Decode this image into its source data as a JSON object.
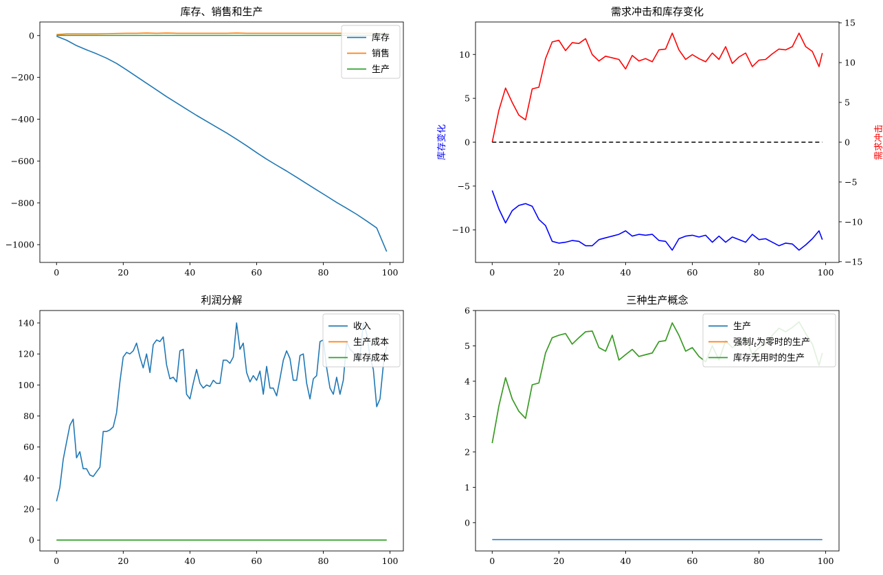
{
  "figure": {
    "background": "#ffffff"
  },
  "chart_data": [
    {
      "id": "p1",
      "type": "line",
      "title": "库存、销售和生产",
      "xlim": [
        -5,
        104
      ],
      "ylim": [
        -1085,
        65
      ],
      "xticks": [
        0,
        20,
        40,
        60,
        80,
        100
      ],
      "yticks": [
        0,
        -200,
        -400,
        -600,
        -800,
        -1000
      ],
      "x": [
        0,
        3,
        6,
        9,
        12,
        15,
        18,
        21,
        24,
        27,
        30,
        33,
        36,
        39,
        42,
        45,
        48,
        51,
        54,
        57,
        60,
        63,
        66,
        69,
        72,
        75,
        78,
        81,
        84,
        87,
        90,
        93,
        96,
        99
      ],
      "series": [
        {
          "name": "库存",
          "color": "#1f77b4",
          "values": [
            -3,
            -22,
            -48,
            -68,
            -87,
            -108,
            -133,
            -164,
            -196,
            -228,
            -260,
            -292,
            -322,
            -352,
            -382,
            -410,
            -438,
            -466,
            -496,
            -527,
            -560,
            -591,
            -620,
            -648,
            -678,
            -708,
            -738,
            -768,
            -798,
            -826,
            -855,
            -887,
            -920,
            -1033
          ]
        },
        {
          "name": "销售",
          "color": "#ff7f0e",
          "values": [
            5,
            8,
            8,
            8,
            8,
            9,
            10,
            11,
            11,
            12,
            11,
            12,
            11,
            11,
            11,
            11,
            11,
            11,
            12,
            11,
            11,
            11,
            11,
            11,
            11,
            11,
            11,
            11,
            11,
            11,
            11,
            11,
            11,
            11
          ]
        },
        {
          "name": "生产",
          "color": "#2ca02c",
          "values": [
            1,
            1,
            1,
            1,
            1,
            1,
            1,
            1,
            1,
            1,
            1,
            1,
            1,
            1,
            1,
            1,
            1,
            1,
            1,
            1,
            1,
            1,
            1,
            1,
            1,
            1,
            1,
            1,
            1,
            1,
            1,
            1,
            1,
            1
          ]
        }
      ],
      "legend": "top-right"
    },
    {
      "id": "p2",
      "type": "line",
      "title": "需求冲击和库存变化",
      "xlim": [
        -5,
        104
      ],
      "ylim": [
        -13.7,
        13.7
      ],
      "y2lim": [
        -15.1,
        15.1
      ],
      "xticks": [
        0,
        20,
        40,
        60,
        80,
        100
      ],
      "yticks": [
        10,
        5,
        0,
        -5,
        -10
      ],
      "y2ticks": [
        15,
        10,
        5,
        0,
        -5,
        -10,
        -15
      ],
      "ylabel": "库存变化",
      "y2label": "需求冲击",
      "ylabel_color": "#0000ff",
      "y2label_color": "#ff0000",
      "x": [
        0,
        2,
        4,
        6,
        8,
        10,
        12,
        14,
        16,
        18,
        20,
        22,
        24,
        26,
        28,
        30,
        32,
        34,
        36,
        38,
        40,
        42,
        44,
        46,
        48,
        50,
        52,
        54,
        56,
        58,
        60,
        62,
        64,
        66,
        68,
        70,
        72,
        74,
        76,
        78,
        80,
        82,
        84,
        86,
        88,
        90,
        92,
        94,
        96,
        98,
        99
      ],
      "series": [
        {
          "name": "需求冲击",
          "axis": "right",
          "color": "#ff0000",
          "values": [
            0,
            4,
            6.8,
            5.0,
            3.4,
            2.8,
            6.7,
            6.9,
            10.5,
            12.6,
            12.8,
            11.5,
            12.5,
            12.4,
            13.0,
            11.0,
            10.2,
            10.8,
            10.6,
            10.4,
            9.2,
            10.9,
            10.2,
            10.5,
            10.1,
            11.6,
            11.7,
            13.7,
            11.6,
            10.4,
            11.0,
            10.5,
            10.1,
            11.2,
            10.4,
            12.0,
            9.9,
            10.7,
            11.2,
            9.5,
            10.3,
            10.4,
            11.1,
            11.7,
            11.6,
            12.0,
            13.7,
            12.0,
            11.4,
            9.5,
            11.2
          ]
        },
        {
          "name": "库存变化",
          "axis": "left",
          "color": "#0000ff",
          "values": [
            -5.5,
            -7.6,
            -9.2,
            -7.8,
            -7.2,
            -7.0,
            -7.3,
            -8.8,
            -9.5,
            -11.3,
            -11.5,
            -11.4,
            -11.2,
            -11.3,
            -11.8,
            -11.8,
            -11.1,
            -10.9,
            -10.7,
            -10.5,
            -10.1,
            -10.7,
            -10.5,
            -10.6,
            -10.5,
            -11.2,
            -11.3,
            -12.3,
            -11.0,
            -10.7,
            -10.6,
            -10.8,
            -10.6,
            -11.4,
            -10.7,
            -11.4,
            -10.8,
            -11.1,
            -11.4,
            -10.5,
            -11.1,
            -11.0,
            -11.4,
            -11.8,
            -11.5,
            -11.6,
            -12.3,
            -11.7,
            -11.0,
            -10.1,
            -11.1
          ]
        },
        {
          "name": "零线",
          "axis": "left",
          "color": "#000000",
          "dashed": true,
          "x": [
            0,
            99
          ],
          "values": [
            0,
            0
          ]
        }
      ]
    },
    {
      "id": "p3",
      "type": "line",
      "title": "利润分解",
      "xlim": [
        -5,
        104
      ],
      "ylim": [
        -7,
        148
      ],
      "xticks": [
        0,
        20,
        40,
        60,
        80,
        100
      ],
      "yticks": [
        0,
        20,
        40,
        60,
        80,
        100,
        120,
        140
      ],
      "x": [
        0,
        1,
        2,
        3,
        4,
        5,
        6,
        7,
        8,
        9,
        10,
        11,
        12,
        13,
        14,
        15,
        16,
        17,
        18,
        19,
        20,
        21,
        22,
        23,
        24,
        25,
        26,
        27,
        28,
        29,
        30,
        31,
        32,
        33,
        34,
        35,
        36,
        37,
        38,
        39,
        40,
        41,
        42,
        43,
        44,
        45,
        46,
        47,
        48,
        49,
        50,
        51,
        52,
        53,
        54,
        55,
        56,
        57,
        58,
        59,
        60,
        61,
        62,
        63,
        64,
        65,
        66,
        67,
        68,
        69,
        70,
        71,
        72,
        73,
        74,
        75,
        76,
        77,
        78,
        79,
        80,
        81,
        82,
        83,
        84,
        85,
        86,
        87,
        88,
        89,
        90,
        91,
        92,
        93,
        94,
        95,
        96,
        97,
        98,
        99
      ],
      "series": [
        {
          "name": "收入",
          "color": "#1f77b4",
          "values": [
            25,
            34,
            52,
            63,
            74,
            78,
            53,
            57,
            46,
            46,
            42,
            41,
            44,
            47,
            70,
            70,
            71,
            73,
            82,
            102,
            118,
            121,
            120,
            122,
            127,
            118,
            111,
            120,
            108,
            126,
            129,
            128,
            131,
            113,
            104,
            105,
            102,
            122,
            123,
            94,
            91,
            101,
            110,
            101,
            98,
            100,
            99,
            103,
            101,
            101,
            116,
            116,
            114,
            118,
            140,
            123,
            127,
            108,
            102,
            106,
            103,
            109,
            94,
            112,
            98,
            98,
            93,
            104,
            116,
            122,
            117,
            103,
            103,
            119,
            120,
            101,
            91,
            104,
            106,
            128,
            129,
            111,
            98,
            94,
            105,
            94,
            103,
            128,
            123,
            121,
            116,
            119,
            140,
            133,
            118,
            110,
            86,
            91,
            113,
            125
          ]
        },
        {
          "name": "生产成本",
          "color": "#ff7f0e",
          "values": [
            0,
            0,
            0,
            0,
            0,
            0,
            0,
            0,
            0,
            0,
            0,
            0,
            0,
            0,
            0,
            0,
            0,
            0,
            0,
            0,
            0,
            0,
            0,
            0,
            0,
            0,
            0,
            0,
            0,
            0,
            0,
            0,
            0,
            0,
            0,
            0,
            0,
            0,
            0,
            0,
            0,
            0,
            0,
            0,
            0,
            0,
            0,
            0,
            0,
            0,
            0,
            0,
            0,
            0,
            0,
            0,
            0,
            0,
            0,
            0,
            0,
            0,
            0,
            0,
            0,
            0,
            0,
            0,
            0,
            0,
            0,
            0,
            0,
            0,
            0,
            0,
            0,
            0,
            0,
            0,
            0,
            0,
            0,
            0,
            0,
            0,
            0,
            0,
            0,
            0,
            0,
            0,
            0,
            0,
            0,
            0,
            0,
            0,
            0,
            0
          ]
        },
        {
          "name": "库存成本",
          "color": "#2ca02c",
          "values": [
            0,
            0,
            0,
            0,
            0,
            0,
            0,
            0,
            0,
            0,
            0,
            0,
            0,
            0,
            0,
            0,
            0,
            0,
            0,
            0,
            0,
            0,
            0,
            0,
            0,
            0,
            0,
            0,
            0,
            0,
            0,
            0,
            0,
            0,
            0,
            0,
            0,
            0,
            0,
            0,
            0,
            0,
            0,
            0,
            0,
            0,
            0,
            0,
            0,
            0,
            0,
            0,
            0,
            0,
            0,
            0,
            0,
            0,
            0,
            0,
            0,
            0,
            0,
            0,
            0,
            0,
            0,
            0,
            0,
            0,
            0,
            0,
            0,
            0,
            0,
            0,
            0,
            0,
            0,
            0,
            0,
            0,
            0,
            0,
            0,
            0,
            0,
            0,
            0,
            0,
            0,
            0,
            0,
            0,
            0,
            0,
            0,
            0,
            0,
            0
          ]
        }
      ],
      "legend": "top-right"
    },
    {
      "id": "p4",
      "type": "line",
      "title": "三种生产概念",
      "xlim": [
        -5,
        104
      ],
      "ylim": [
        -0.8,
        6.0
      ],
      "xticks": [
        0,
        20,
        40,
        60,
        80,
        100
      ],
      "yticks": [
        0,
        1,
        2,
        3,
        4,
        5,
        6
      ],
      "x": [
        0,
        2,
        4,
        6,
        8,
        10,
        12,
        14,
        16,
        18,
        20,
        22,
        24,
        26,
        28,
        30,
        32,
        34,
        36,
        38,
        40,
        42,
        44,
        46,
        48,
        50,
        52,
        54,
        56,
        58,
        60,
        62,
        64,
        66,
        68,
        70,
        72,
        74,
        76,
        78,
        80,
        82,
        84,
        86,
        88,
        90,
        92,
        94,
        96,
        98,
        99
      ],
      "series": [
        {
          "name": "生产",
          "color": "#1f77b4",
          "x": [
            0,
            99
          ],
          "values": [
            -0.48,
            -0.48
          ]
        },
        {
          "name": "强制l_t为零时的生产",
          "legend_html": true,
          "color": "#ff7f0e",
          "values": [
            2.25,
            3.3,
            4.1,
            3.5,
            3.15,
            2.95,
            3.9,
            3.95,
            4.8,
            5.23,
            5.3,
            5.35,
            5.05,
            5.23,
            5.4,
            5.42,
            4.95,
            4.85,
            5.3,
            4.6,
            4.75,
            4.9,
            4.7,
            4.75,
            4.8,
            5.12,
            5.15,
            5.65,
            5.3,
            4.85,
            4.95,
            4.7,
            4.55,
            5.0,
            4.6,
            5.15,
            4.95,
            5.05,
            5.25,
            4.75,
            4.95,
            5.05,
            5.3,
            5.5,
            5.4,
            5.52,
            5.68,
            5.35,
            5.05,
            4.45,
            4.8
          ]
        },
        {
          "name": "库存无用时的生产",
          "color": "#2ca02c",
          "values": [
            2.25,
            3.3,
            4.1,
            3.5,
            3.15,
            2.95,
            3.9,
            3.95,
            4.8,
            5.23,
            5.3,
            5.35,
            5.05,
            5.23,
            5.4,
            5.42,
            4.95,
            4.85,
            5.3,
            4.6,
            4.75,
            4.9,
            4.7,
            4.75,
            4.8,
            5.12,
            5.15,
            5.65,
            5.3,
            4.85,
            4.95,
            4.7,
            4.55,
            5.0,
            4.6,
            5.15,
            4.95,
            5.05,
            5.25,
            4.75,
            4.95,
            5.05,
            5.3,
            5.5,
            5.4,
            5.52,
            5.68,
            5.35,
            5.05,
            4.45,
            4.8
          ]
        }
      ],
      "legend": "top-right"
    }
  ]
}
